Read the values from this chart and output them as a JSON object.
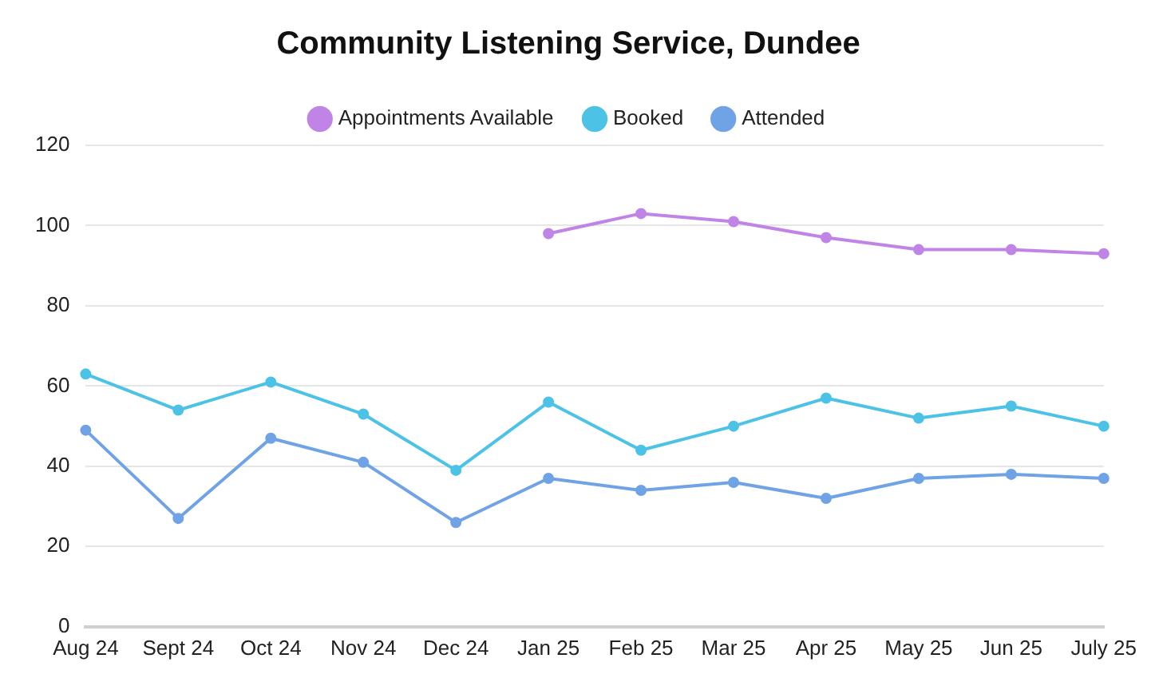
{
  "chart_data": {
    "type": "line",
    "title": "Community Listening Service, Dundee",
    "categories": [
      "Aug 24",
      "Sept 24",
      "Oct 24",
      "Nov 24",
      "Dec 24",
      "Jan 25",
      "Feb 25",
      "Mar 25",
      "Apr 25",
      "May 25",
      "Jun 25",
      "July 25"
    ],
    "series": [
      {
        "name": "Appointments Available",
        "color": "#c084e6",
        "values": [
          null,
          null,
          null,
          null,
          null,
          98,
          103,
          101,
          97,
          94,
          94,
          93
        ]
      },
      {
        "name": "Booked",
        "color": "#4cc3e6",
        "values": [
          63,
          54,
          61,
          53,
          39,
          56,
          44,
          50,
          57,
          52,
          55,
          50
        ]
      },
      {
        "name": "Attended",
        "color": "#6fa3e6",
        "values": [
          49,
          27,
          47,
          41,
          26,
          37,
          34,
          36,
          32,
          37,
          38,
          37
        ]
      }
    ],
    "ylim": [
      0,
      120
    ],
    "yticks": [
      0,
      20,
      40,
      60,
      80,
      100,
      120
    ],
    "grid": "y",
    "legend": "top",
    "marker": "circle",
    "line_style": "solid"
  }
}
